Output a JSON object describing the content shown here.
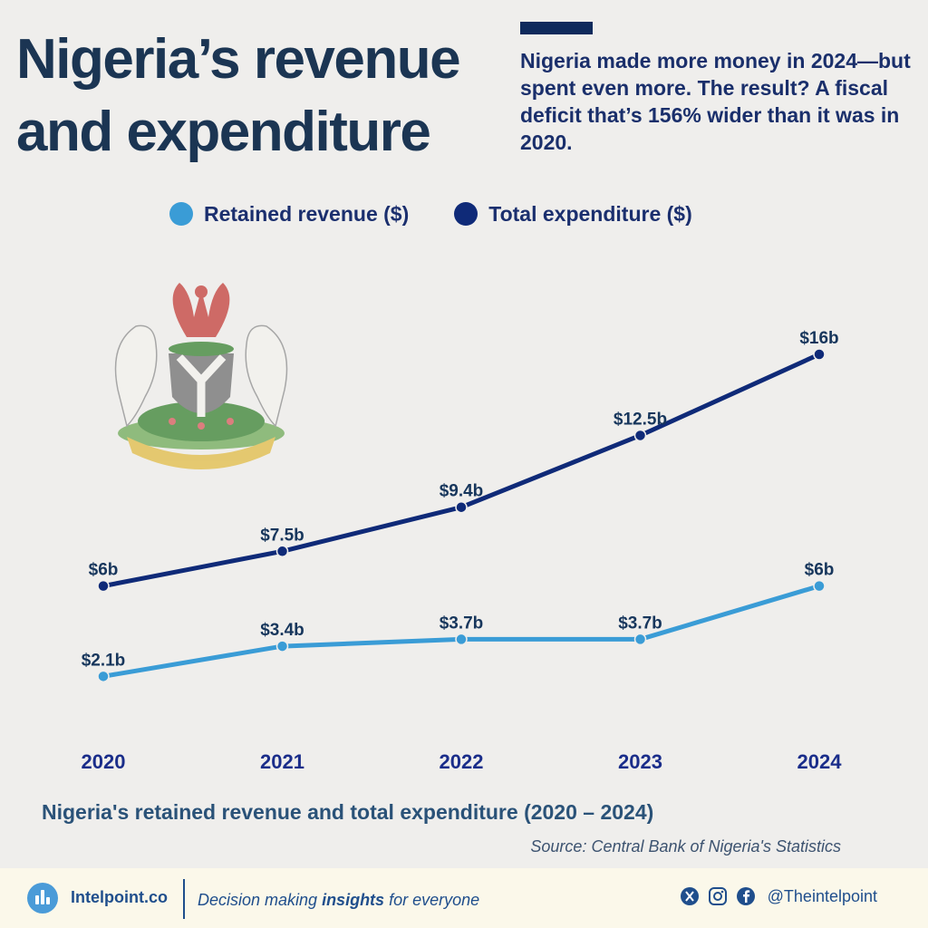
{
  "header": {
    "title": "Nigeria’s revenue\nand expenditure",
    "subtitle": "Nigeria made more money in 2024—but spent even more. The result? A fiscal deficit that’s 156% wider than it was in 2020."
  },
  "colors": {
    "revenue": "#3a9cd6",
    "expenditure": "#0f2a78",
    "title": "#1b3553",
    "accent_bar": "#0f2a5c"
  },
  "legend": [
    {
      "label": "Retained revenue ($)",
      "color": "#3a9cd6"
    },
    {
      "label": "Total expenditure ($)",
      "color": "#0f2a78"
    }
  ],
  "chart_data": {
    "type": "line",
    "x": [
      "2020",
      "2021",
      "2022",
      "2023",
      "2024"
    ],
    "series": [
      {
        "name": "Total expenditure ($)",
        "values": [
          6,
          7.5,
          9.4,
          12.5,
          16
        ],
        "labels": [
          "$6b",
          "$7.5b",
          "$9.4b",
          "$12.5b",
          "$16b"
        ],
        "color": "#0f2a78"
      },
      {
        "name": "Retained revenue ($)",
        "values": [
          2.1,
          3.4,
          3.7,
          3.7,
          6
        ],
        "labels": [
          "$2.1b",
          "$3.4b",
          "$3.7b",
          "$3.7b",
          "$6b"
        ],
        "color": "#3a9cd6"
      }
    ],
    "ylim": [
      0,
      16
    ],
    "grid": false,
    "legend_position": "top",
    "caption": "Nigeria's retained revenue and total expenditure (2020 – 2024)",
    "source": "Source: Central Bank of Nigeria's Statistics"
  },
  "decoration": {
    "coat_of_arms": "nigeria-coat-of-arms"
  },
  "footer": {
    "brand": "Intelpoint.co",
    "tagline_pre": "Decision making ",
    "tagline_bold": "insights",
    "tagline_post": " for everyone",
    "handle": "@Theintelpoint",
    "icons": [
      "x-icon",
      "instagram-icon",
      "facebook-icon"
    ]
  }
}
